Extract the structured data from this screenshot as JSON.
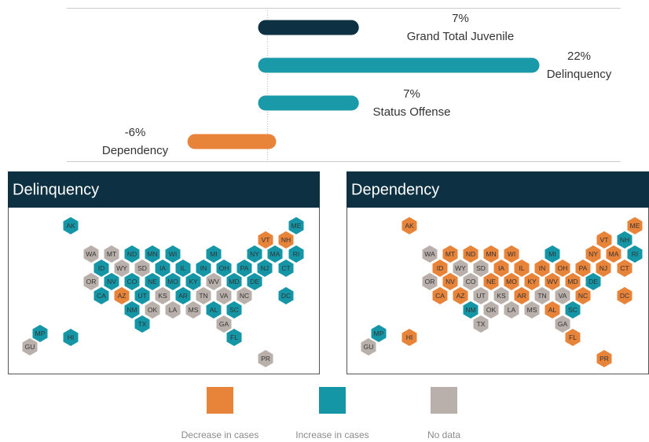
{
  "chart_data": [
    {
      "type": "bar",
      "categories": [
        "Grand Total Juvenile",
        "Delinquency",
        "Status Offense",
        "Dependency"
      ],
      "values": [
        7,
        22,
        7,
        -6
      ],
      "value_labels": [
        "7%",
        "22%",
        "7%",
        "-6%"
      ],
      "colors": [
        "#0d3142",
        "#1a9aa8",
        "#1a9aa8",
        "#e8833a"
      ]
    },
    {
      "type": "hexmap",
      "title": "Delinquency",
      "states": [
        "AK",
        "ME",
        "VT",
        "NH",
        "WA",
        "MT",
        "ND",
        "MN",
        "WI",
        "MI",
        "NY",
        "MA",
        "RI",
        "ID",
        "WY",
        "SD",
        "IA",
        "IL",
        "IN",
        "OH",
        "PA",
        "NJ",
        "CT",
        "OR",
        "NV",
        "CO",
        "NE",
        "MO",
        "KY",
        "WV",
        "MD",
        "DE",
        "CA",
        "AZ",
        "UT",
        "KS",
        "AR",
        "TN",
        "VA",
        "NC",
        "DC",
        "NM",
        "OK",
        "LA",
        "MS",
        "AL",
        "SC",
        "TX",
        "GA",
        "MP",
        "HI",
        "FL",
        "GU",
        "PR"
      ],
      "status": [
        "Increase in cases",
        "Increase in cases",
        "Decrease in cases",
        "Decrease in cases",
        "No data",
        "No data",
        "Increase in cases",
        "Increase in cases",
        "Increase in cases",
        "Increase in cases",
        "Increase in cases",
        "Increase in cases",
        "Increase in cases",
        "Increase in cases",
        "No data",
        "No data",
        "Increase in cases",
        "Increase in cases",
        "Increase in cases",
        "Increase in cases",
        "Increase in cases",
        "Increase in cases",
        "Increase in cases",
        "No data",
        "Increase in cases",
        "Increase in cases",
        "Increase in cases",
        "Increase in cases",
        "Increase in cases",
        "No data",
        "Increase in cases",
        "Increase in cases",
        "Increase in cases",
        "Decrease in cases",
        "Increase in cases",
        "No data",
        "Increase in cases",
        "No data",
        "No data",
        "No data",
        "Increase in cases",
        "Increase in cases",
        "No data",
        "No data",
        "No data",
        "Increase in cases",
        "Increase in cases",
        "Increase in cases",
        "No data",
        "Increase in cases",
        "Increase in cases",
        "Increase in cases",
        "No data",
        "No data"
      ]
    },
    {
      "type": "hexmap",
      "title": "Dependency",
      "states": [
        "AK",
        "ME",
        "VT",
        "NH",
        "WA",
        "MT",
        "ND",
        "MN",
        "WI",
        "MI",
        "NY",
        "MA",
        "RI",
        "ID",
        "WY",
        "SD",
        "IA",
        "IL",
        "IN",
        "OH",
        "PA",
        "NJ",
        "CT",
        "OR",
        "NV",
        "CO",
        "NE",
        "MO",
        "KY",
        "WV",
        "MD",
        "DE",
        "CA",
        "AZ",
        "UT",
        "KS",
        "AR",
        "TN",
        "VA",
        "NC",
        "DC",
        "NM",
        "OK",
        "LA",
        "MS",
        "AL",
        "SC",
        "TX",
        "GA",
        "MP",
        "HI",
        "FL",
        "GU",
        "PR"
      ],
      "status": [
        "Decrease in cases",
        "Decrease in cases",
        "Decrease in cases",
        "Increase in cases",
        "No data",
        "Decrease in cases",
        "Decrease in cases",
        "Decrease in cases",
        "Decrease in cases",
        "Increase in cases",
        "Decrease in cases",
        "Decrease in cases",
        "Increase in cases",
        "Decrease in cases",
        "No data",
        "No data",
        "Decrease in cases",
        "Decrease in cases",
        "Decrease in cases",
        "Decrease in cases",
        "Decrease in cases",
        "Decrease in cases",
        "Decrease in cases",
        "No data",
        "Decrease in cases",
        "No data",
        "Decrease in cases",
        "Decrease in cases",
        "Decrease in cases",
        "Decrease in cases",
        "Decrease in cases",
        "Increase in cases",
        "Decrease in cases",
        "Decrease in cases",
        "No data",
        "No data",
        "Decrease in cases",
        "No data",
        "No data",
        "Decrease in cases",
        "Decrease in cases",
        "Increase in cases",
        "No data",
        "No data",
        "No data",
        "Decrease in cases",
        "Increase in cases",
        "No data",
        "No data",
        "Increase in cases",
        "Decrease in cases",
        "Decrease in cases",
        "No data",
        "Decrease in cases"
      ]
    }
  ],
  "legend": [
    {
      "name": "Decrease in cases",
      "color": "#e8833a"
    },
    {
      "name": "Increase in cases",
      "color": "#1596a6"
    },
    {
      "name": "No data",
      "color": "#bab0ab"
    }
  ]
}
